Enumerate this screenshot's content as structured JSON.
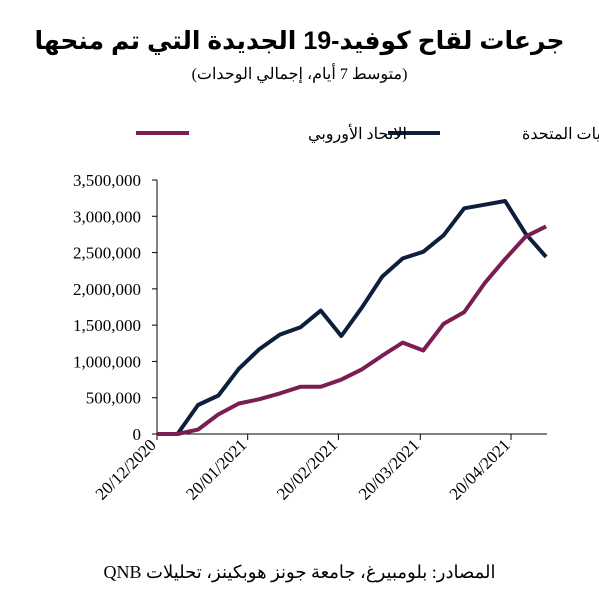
{
  "title": "جرعات لقاح كوفيد-19 الجديدة التي تم منحها",
  "subtitle": "(متوسط 7 أيام، إجمالي الوحدات)",
  "source": "المصادر: بلومبيرغ، جامعة جونز هوبكينز، تحليلات QNB",
  "chart_data": {
    "type": "line",
    "ylim": [
      0,
      3500000
    ],
    "y_ticks": [
      0,
      500000,
      1000000,
      1500000,
      2000000,
      2500000,
      3000000,
      3500000
    ],
    "y_tick_labels": [
      "0",
      "500,000",
      "1,000,000",
      "1,500,000",
      "2,000,000",
      "2,500,000",
      "3,000,000",
      "3,500,000"
    ],
    "x_tick_labels": [
      "20/12/2020",
      "20/01/2021",
      "20/02/2021",
      "20/03/2021",
      "20/04/2021"
    ],
    "x": [
      "2020-12-20",
      "2020-12-27",
      "2021-01-03",
      "2021-01-10",
      "2021-01-17",
      "2021-01-24",
      "2021-01-31",
      "2021-02-07",
      "2021-02-14",
      "2021-02-21",
      "2021-02-28",
      "2021-03-07",
      "2021-03-14",
      "2021-03-21",
      "2021-03-28",
      "2021-04-04",
      "2021-04-11",
      "2021-04-18",
      "2021-04-25",
      "2021-05-02"
    ],
    "legend_position": "top",
    "grid": false,
    "series": [
      {
        "name": "الولايات المتحدة",
        "color": "#0d1f3c",
        "values": [
          0,
          0,
          400000,
          530000,
          900000,
          1170000,
          1370000,
          1470000,
          1700000,
          1350000,
          1740000,
          2170000,
          2420000,
          2510000,
          2740000,
          3110000,
          3160000,
          3210000,
          2760000,
          2440000
        ]
      },
      {
        "name": "الاتحاد الأوروبي",
        "color": "#7b1c53",
        "values": [
          0,
          0,
          60000,
          270000,
          420000,
          480000,
          560000,
          650000,
          650000,
          750000,
          890000,
          1080000,
          1260000,
          1150000,
          1520000,
          1680000,
          2080000,
          2410000,
          2720000,
          2860000
        ]
      }
    ]
  }
}
